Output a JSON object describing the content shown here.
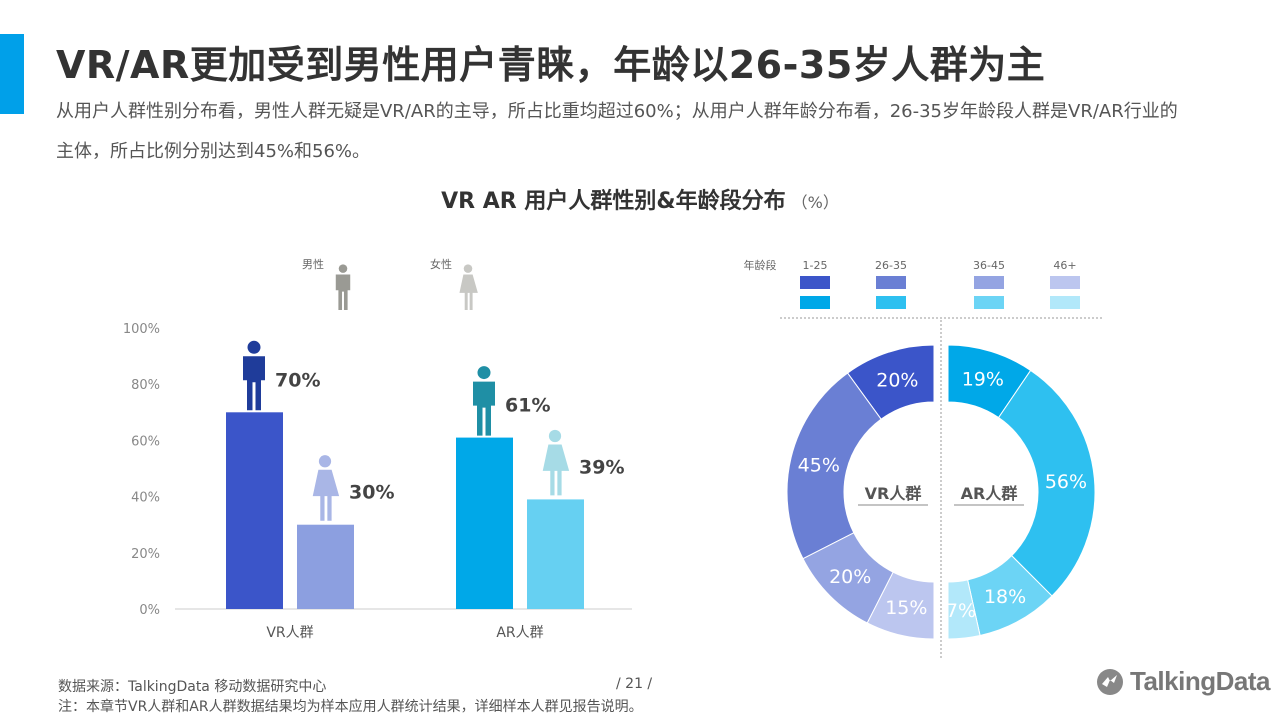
{
  "header": {
    "title": "VR/AR更加受到男性用户青睐，年龄以26-35岁人群为主",
    "subtitle": "从用户人群性别分布看，男性人群无疑是VR/AR的主导，所占比重均超过60%；从用户人群年龄分布看，26-35岁年龄段人群是VR/AR行业的主体，所占比例分别达到45%和56%。"
  },
  "chart_heading": {
    "title": "VR  AR  用户人群性别&年龄段分布",
    "unit": "（%）"
  },
  "colors": {
    "vr_male": "#3b55c9",
    "vr_female": "#8c9fe0",
    "ar_male": "#00a8e8",
    "ar_female": "#66d0f2",
    "male_icon_gray": "#9a9a94",
    "female_icon_gray": "#c8c8c4",
    "vr_male_icon": "#1f3c9a",
    "vr_female_icon": "#a9b6e6",
    "ar_male_icon": "#1f8fa5",
    "ar_female_icon": "#a6dbe6",
    "vr_ages": [
      "#3b55c9",
      "#6a7fd4",
      "#94a4e2",
      "#bcc6ef"
    ],
    "ar_ages": [
      "#00a8e8",
      "#2ec0f0",
      "#6cd4f5",
      "#b2e8fa"
    ]
  },
  "chart_data": [
    {
      "type": "bar",
      "ylim": [
        0,
        100
      ],
      "yticks": [
        "0%",
        "20%",
        "40%",
        "60%",
        "80%",
        "100%"
      ],
      "categories": [
        "VR人群",
        "AR人群"
      ],
      "legend": {
        "male": "男性",
        "female": "女性"
      },
      "series": [
        {
          "name": "男性",
          "values": [
            70,
            61
          ],
          "labels": [
            "70%",
            "61%"
          ]
        },
        {
          "name": "女性",
          "values": [
            30,
            39
          ],
          "labels": [
            "30%",
            "39%"
          ]
        }
      ]
    },
    {
      "type": "pie",
      "variant": "split-donut",
      "legend_title": "年龄段",
      "categories": [
        "1-25",
        "26-35",
        "36-45",
        "46+"
      ],
      "series": [
        {
          "name": "VR人群",
          "values": [
            20,
            45,
            20,
            15
          ],
          "labels": [
            "20%",
            "45%",
            "20%",
            "15%"
          ]
        },
        {
          "name": "AR人群",
          "values": [
            19,
            56,
            18,
            7
          ],
          "labels": [
            "19%",
            "56%",
            "18%",
            "7%"
          ]
        }
      ]
    }
  ],
  "footer": {
    "source": "数据来源：TalkingData 移动数据研究中心",
    "page": "/ 21 /",
    "note": "注：本章节VR人群和AR人群数据结果均为样本应用人群统计结果，详细样本人群见报告说明。",
    "logo": "TalkingData"
  }
}
